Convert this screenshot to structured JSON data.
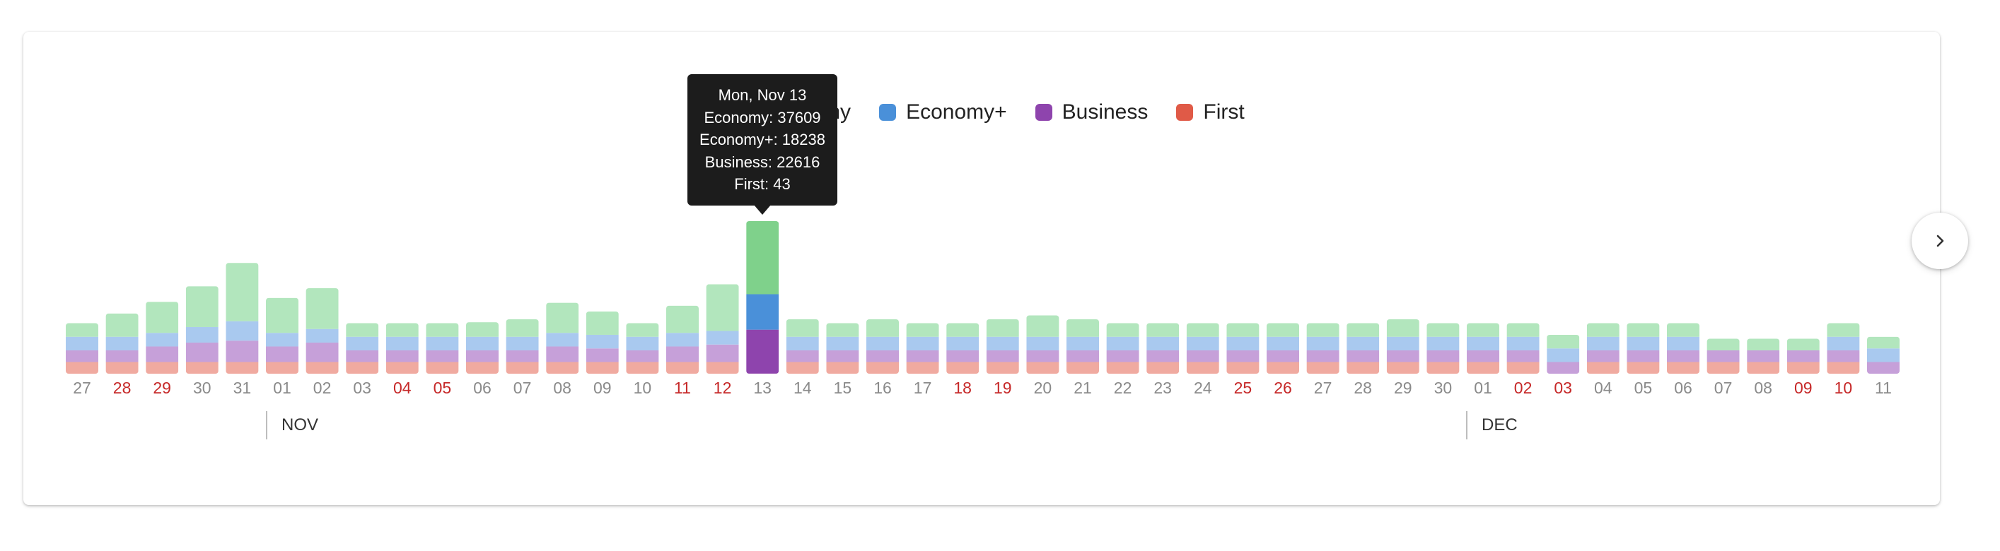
{
  "legend": [
    {
      "label": "Economy",
      "color": "#7fd18b"
    },
    {
      "label": "Economy+",
      "color": "#4a90d9"
    },
    {
      "label": "Business",
      "color": "#8e44ad"
    },
    {
      "label": "First",
      "color": "#e05a47"
    }
  ],
  "tooltip": {
    "title": "Mon, Nov 13",
    "economy": "Economy: 37609",
    "economy_plus": "Economy+: 18238",
    "business": "Business: 22616",
    "first": "First: 43"
  },
  "months": [
    {
      "label": "NOV"
    },
    {
      "label": "DEC"
    }
  ],
  "next_button": {
    "icon": "chevron-right-icon"
  },
  "chart_data": {
    "type": "bar",
    "stacked": true,
    "highlighted_category_index": 17,
    "categories": [
      "27",
      "28",
      "29",
      "30",
      "31",
      "01",
      "02",
      "03",
      "04",
      "05",
      "06",
      "07",
      "08",
      "09",
      "10",
      "11",
      "12",
      "13",
      "14",
      "15",
      "16",
      "17",
      "18",
      "19",
      "20",
      "21",
      "22",
      "23",
      "24",
      "25",
      "26",
      "27",
      "28",
      "29",
      "30",
      "01",
      "02",
      "03",
      "04",
      "05",
      "06",
      "07",
      "08",
      "09",
      "10",
      "11"
    ],
    "weekend": [
      false,
      true,
      true,
      false,
      false,
      false,
      false,
      false,
      true,
      true,
      false,
      false,
      false,
      false,
      false,
      true,
      true,
      false,
      false,
      false,
      false,
      false,
      true,
      true,
      false,
      false,
      false,
      false,
      false,
      true,
      true,
      false,
      false,
      false,
      false,
      false,
      true,
      true,
      false,
      false,
      false,
      false,
      false,
      true,
      true,
      false
    ],
    "series": [
      {
        "name": "Economy",
        "values": [
          7000,
          12000,
          16000,
          21000,
          30000,
          18000,
          21000,
          7000,
          7000,
          7000,
          7500,
          9000,
          15500,
          12000,
          7000,
          14000,
          24000,
          37609,
          9000,
          7000,
          9000,
          7000,
          7000,
          9000,
          11000,
          9000,
          7000,
          7000,
          7000,
          7000,
          7000,
          7000,
          7000,
          9000,
          7000,
          7000,
          7000,
          7000,
          7000,
          7000,
          7000,
          6000,
          6000,
          6000,
          7000,
          6000
        ]
      },
      {
        "name": "Economy+",
        "values": [
          7000,
          7000,
          7000,
          8000,
          10000,
          7000,
          7000,
          7000,
          7000,
          7000,
          7000,
          7000,
          7000,
          7000,
          7000,
          7000,
          7000,
          18238,
          7000,
          7000,
          7000,
          7000,
          7000,
          7000,
          7000,
          7000,
          7000,
          7000,
          7000,
          7000,
          7000,
          7000,
          7000,
          7000,
          7000,
          7000,
          7000,
          7000,
          7000,
          7000,
          7000,
          0,
          0,
          0,
          7000,
          7000
        ]
      },
      {
        "name": "Business",
        "values": [
          6000,
          6000,
          8000,
          10000,
          11000,
          8000,
          10000,
          6000,
          6000,
          6000,
          6000,
          6000,
          8000,
          7000,
          6000,
          8000,
          9000,
          22616,
          6000,
          6000,
          6000,
          6000,
          6000,
          6000,
          6000,
          6000,
          6000,
          6000,
          6000,
          6000,
          6000,
          6000,
          6000,
          6000,
          6000,
          6000,
          6000,
          6000,
          6000,
          6000,
          6000,
          6000,
          6000,
          6000,
          6000,
          6000
        ]
      },
      {
        "name": "First",
        "values": [
          6000,
          6000,
          6000,
          6000,
          6000,
          6000,
          6000,
          6000,
          6000,
          6000,
          6000,
          6000,
          6000,
          6000,
          6000,
          6000,
          6000,
          43,
          6000,
          6000,
          6000,
          6000,
          6000,
          6000,
          6000,
          6000,
          6000,
          6000,
          6000,
          6000,
          6000,
          6000,
          6000,
          6000,
          6000,
          6000,
          6000,
          0,
          6000,
          6000,
          6000,
          6000,
          6000,
          6000,
          6000,
          0
        ]
      }
    ],
    "title": "",
    "xlabel": "",
    "ylabel": ""
  }
}
